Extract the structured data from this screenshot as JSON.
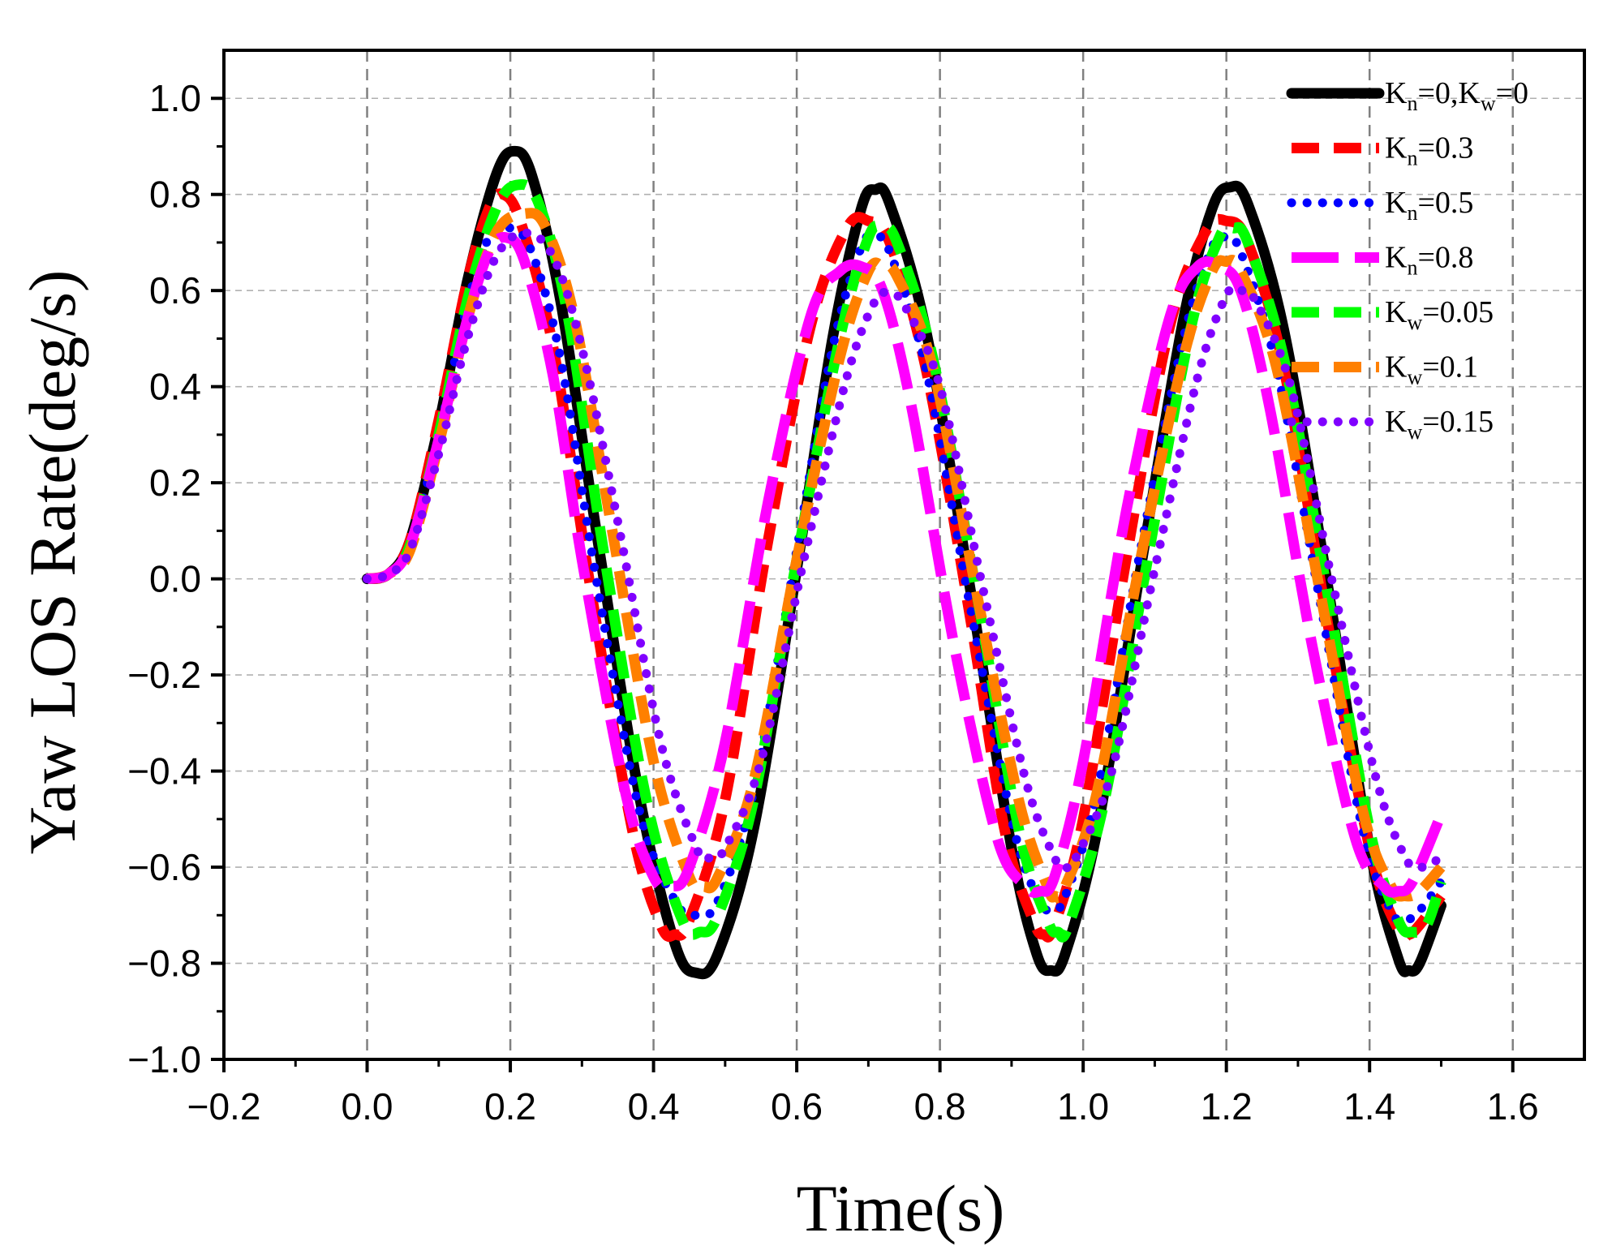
{
  "chart_data": {
    "type": "line",
    "title": "",
    "xlabel": "Time(s)",
    "ylabel": "Yaw LOS Rate(deg/s)",
    "xlim": [
      -0.2,
      1.7
    ],
    "ylim": [
      -1.0,
      1.1
    ],
    "x_ticks": [
      -0.2,
      0.0,
      0.2,
      0.4,
      0.6,
      0.8,
      1.0,
      1.2,
      1.4,
      1.6
    ],
    "x_tick_labels": [
      "−0.2",
      "0.0",
      "0.2",
      "0.4",
      "0.6",
      "0.8",
      "1.0",
      "1.2",
      "1.4",
      "1.6"
    ],
    "y_ticks": [
      -1.0,
      -0.8,
      -0.6,
      -0.4,
      -0.2,
      0.0,
      0.2,
      0.4,
      0.6,
      0.8,
      1.0
    ],
    "y_tick_labels": [
      "−1.0",
      "−0.8",
      "−0.6",
      "−0.4",
      "−0.2",
      "0.0",
      "0.2",
      "0.4",
      "0.6",
      "0.8",
      "1.0"
    ],
    "grid": true,
    "legend_position": "top-right",
    "series": [
      {
        "name": "Kn=0,Kw=0",
        "legend": {
          "parts": [
            {
              "t": "K"
            },
            {
              "t": "n",
              "sub": true
            },
            {
              "t": "=0,K"
            },
            {
              "t": "w",
              "sub": true
            },
            {
              "t": "=0"
            }
          ]
        },
        "color": "#000000",
        "style": "solid",
        "x": [
          0.0,
          0.03,
          0.06,
          0.1,
          0.14,
          0.18,
          0.205,
          0.23,
          0.27,
          0.32,
          0.38,
          0.43,
          0.46,
          0.49,
          0.54,
          0.6,
          0.65,
          0.69,
          0.71,
          0.73,
          0.78,
          0.84,
          0.9,
          0.935,
          0.955,
          0.975,
          1.02,
          1.08,
          1.14,
          1.18,
          1.205,
          1.23,
          1.28,
          1.34,
          1.4,
          1.44,
          1.455,
          1.47,
          1.5
        ],
        "y": [
          0.0,
          0.01,
          0.08,
          0.32,
          0.62,
          0.84,
          0.89,
          0.84,
          0.58,
          0.1,
          -0.45,
          -0.76,
          -0.82,
          -0.78,
          -0.52,
          0.02,
          0.5,
          0.77,
          0.81,
          0.78,
          0.52,
          0.0,
          -0.56,
          -0.78,
          -0.815,
          -0.78,
          -0.52,
          0.02,
          0.54,
          0.77,
          0.815,
          0.78,
          0.52,
          0.0,
          -0.56,
          -0.79,
          -0.815,
          -0.8,
          -0.68
        ]
      },
      {
        "name": "Kn=0.3",
        "legend": {
          "parts": [
            {
              "t": "K"
            },
            {
              "t": "n",
              "sub": true
            },
            {
              "t": "=0.3"
            }
          ]
        },
        "color": "#ff0000",
        "style": "dash",
        "x": [
          0.0,
          0.03,
          0.06,
          0.1,
          0.14,
          0.17,
          0.19,
          0.215,
          0.26,
          0.31,
          0.37,
          0.41,
          0.43,
          0.45,
          0.5,
          0.56,
          0.62,
          0.67,
          0.7,
          0.73,
          0.78,
          0.84,
          0.89,
          0.93,
          0.945,
          0.96,
          1.0,
          1.06,
          1.12,
          1.17,
          1.2,
          1.23,
          1.28,
          1.34,
          1.4,
          1.44,
          1.455,
          1.47,
          1.5
        ],
        "y": [
          0.0,
          0.01,
          0.08,
          0.33,
          0.62,
          0.77,
          0.8,
          0.74,
          0.48,
          0.0,
          -0.52,
          -0.72,
          -0.74,
          -0.71,
          -0.46,
          0.08,
          0.53,
          0.73,
          0.745,
          0.7,
          0.44,
          -0.06,
          -0.52,
          -0.71,
          -0.74,
          -0.72,
          -0.5,
          0.04,
          0.52,
          0.72,
          0.745,
          0.7,
          0.44,
          -0.08,
          -0.56,
          -0.73,
          -0.74,
          -0.72,
          -0.66
        ]
      },
      {
        "name": "Kn=0.5",
        "legend": {
          "parts": [
            {
              "t": "K"
            },
            {
              "t": "n",
              "sub": true
            },
            {
              "t": "=0.5"
            }
          ]
        },
        "color": "#0000ff",
        "style": "dot",
        "x": [
          0.0,
          0.03,
          0.06,
          0.1,
          0.14,
          0.17,
          0.2,
          0.23,
          0.27,
          0.32,
          0.38,
          0.43,
          0.46,
          0.49,
          0.54,
          0.6,
          0.65,
          0.69,
          0.71,
          0.73,
          0.78,
          0.84,
          0.9,
          0.935,
          0.955,
          0.975,
          1.02,
          1.08,
          1.14,
          1.18,
          1.2,
          1.22,
          1.27,
          1.33,
          1.39,
          1.43,
          1.45,
          1.47,
          1.5
        ],
        "y": [
          0.0,
          0.01,
          0.07,
          0.3,
          0.57,
          0.71,
          0.73,
          0.68,
          0.46,
          0.0,
          -0.48,
          -0.67,
          -0.7,
          -0.67,
          -0.44,
          0.06,
          0.48,
          0.69,
          0.71,
          0.68,
          0.44,
          -0.04,
          -0.5,
          -0.66,
          -0.69,
          -0.66,
          -0.44,
          0.06,
          0.5,
          0.69,
          0.71,
          0.68,
          0.44,
          -0.04,
          -0.52,
          -0.69,
          -0.71,
          -0.69,
          -0.63
        ]
      },
      {
        "name": "Kn=0.8",
        "legend": {
          "parts": [
            {
              "t": "K"
            },
            {
              "t": "n",
              "sub": true
            },
            {
              "t": "=0.8"
            }
          ]
        },
        "color": "#ff00ff",
        "style": "longdash",
        "x": [
          0.0,
          0.03,
          0.06,
          0.1,
          0.14,
          0.17,
          0.195,
          0.22,
          0.26,
          0.3,
          0.36,
          0.4,
          0.425,
          0.45,
          0.5,
          0.56,
          0.62,
          0.66,
          0.69,
          0.72,
          0.76,
          0.82,
          0.88,
          0.92,
          0.94,
          0.96,
          1.0,
          1.06,
          1.12,
          1.16,
          1.19,
          1.22,
          1.26,
          1.32,
          1.38,
          1.42,
          1.44,
          1.46,
          1.5
        ],
        "y": [
          0.0,
          0.01,
          0.07,
          0.29,
          0.54,
          0.68,
          0.71,
          0.66,
          0.42,
          0.04,
          -0.44,
          -0.62,
          -0.64,
          -0.6,
          -0.34,
          0.16,
          0.55,
          0.64,
          0.65,
          0.6,
          0.36,
          -0.14,
          -0.54,
          -0.64,
          -0.65,
          -0.62,
          -0.38,
          0.14,
          0.54,
          0.65,
          0.65,
          0.6,
          0.36,
          -0.14,
          -0.54,
          -0.64,
          -0.65,
          -0.63,
          -0.49
        ]
      },
      {
        "name": "Kw=0.05",
        "legend": {
          "parts": [
            {
              "t": "K"
            },
            {
              "t": "w",
              "sub": true
            },
            {
              "t": "=0.05"
            }
          ]
        },
        "color": "#00ff00",
        "style": "dash",
        "x": [
          0.0,
          0.03,
          0.06,
          0.1,
          0.14,
          0.18,
          0.21,
          0.24,
          0.28,
          0.33,
          0.39,
          0.44,
          0.465,
          0.49,
          0.54,
          0.6,
          0.66,
          0.7,
          0.72,
          0.74,
          0.79,
          0.85,
          0.91,
          0.95,
          0.965,
          0.98,
          1.03,
          1.09,
          1.15,
          1.19,
          1.21,
          1.23,
          1.28,
          1.34,
          1.4,
          1.44,
          1.46,
          1.48,
          1.5
        ],
        "y": [
          0.0,
          0.01,
          0.07,
          0.3,
          0.58,
          0.77,
          0.82,
          0.78,
          0.55,
          0.06,
          -0.46,
          -0.71,
          -0.735,
          -0.7,
          -0.46,
          0.04,
          0.5,
          0.71,
          0.73,
          0.7,
          0.46,
          -0.02,
          -0.52,
          -0.71,
          -0.735,
          -0.72,
          -0.46,
          0.04,
          0.52,
          0.71,
          0.73,
          0.7,
          0.46,
          -0.02,
          -0.52,
          -0.71,
          -0.735,
          -0.72,
          -0.63
        ]
      },
      {
        "name": "Kw=0.1",
        "legend": {
          "parts": [
            {
              "t": "K"
            },
            {
              "t": "w",
              "sub": true
            },
            {
              "t": "=0.1"
            }
          ]
        },
        "color": "#ff8000",
        "style": "dash",
        "x": [
          0.0,
          0.03,
          0.06,
          0.1,
          0.14,
          0.18,
          0.22,
          0.25,
          0.29,
          0.34,
          0.4,
          0.45,
          0.47,
          0.49,
          0.54,
          0.6,
          0.66,
          0.7,
          0.72,
          0.74,
          0.79,
          0.85,
          0.91,
          0.95,
          0.96,
          0.975,
          1.02,
          1.08,
          1.14,
          1.18,
          1.2,
          1.22,
          1.27,
          1.33,
          1.39,
          1.43,
          1.45,
          1.47,
          1.5
        ],
        "y": [
          0.0,
          0.01,
          0.06,
          0.28,
          0.54,
          0.72,
          0.76,
          0.73,
          0.54,
          0.12,
          -0.38,
          -0.62,
          -0.64,
          -0.62,
          -0.42,
          0.04,
          0.46,
          0.64,
          0.65,
          0.63,
          0.44,
          -0.02,
          -0.46,
          -0.64,
          -0.66,
          -0.64,
          -0.44,
          0.04,
          0.46,
          0.64,
          0.66,
          0.64,
          0.44,
          -0.02,
          -0.48,
          -0.64,
          -0.66,
          -0.65,
          -0.6
        ]
      },
      {
        "name": "Kw=0.15",
        "legend": {
          "parts": [
            {
              "t": "K"
            },
            {
              "t": "w",
              "sub": true
            },
            {
              "t": "=0.15"
            }
          ]
        },
        "color": "#8000ff",
        "style": "dot",
        "x": [
          0.0,
          0.03,
          0.06,
          0.1,
          0.14,
          0.18,
          0.22,
          0.26,
          0.3,
          0.35,
          0.41,
          0.46,
          0.48,
          0.5,
          0.55,
          0.61,
          0.67,
          0.71,
          0.73,
          0.75,
          0.8,
          0.86,
          0.92,
          0.96,
          0.975,
          0.99,
          1.04,
          1.1,
          1.16,
          1.2,
          1.22,
          1.24,
          1.29,
          1.35,
          1.41,
          1.45,
          1.47,
          1.49,
          1.5
        ],
        "y": [
          0.0,
          0.01,
          0.06,
          0.26,
          0.5,
          0.67,
          0.72,
          0.67,
          0.48,
          0.12,
          -0.34,
          -0.56,
          -0.58,
          -0.56,
          -0.38,
          0.04,
          0.42,
          0.58,
          0.59,
          0.57,
          0.4,
          -0.02,
          -0.42,
          -0.58,
          -0.6,
          -0.58,
          -0.4,
          0.02,
          0.42,
          0.59,
          0.6,
          0.58,
          0.4,
          -0.02,
          -0.42,
          -0.58,
          -0.6,
          -0.59,
          -0.57
        ]
      }
    ]
  }
}
